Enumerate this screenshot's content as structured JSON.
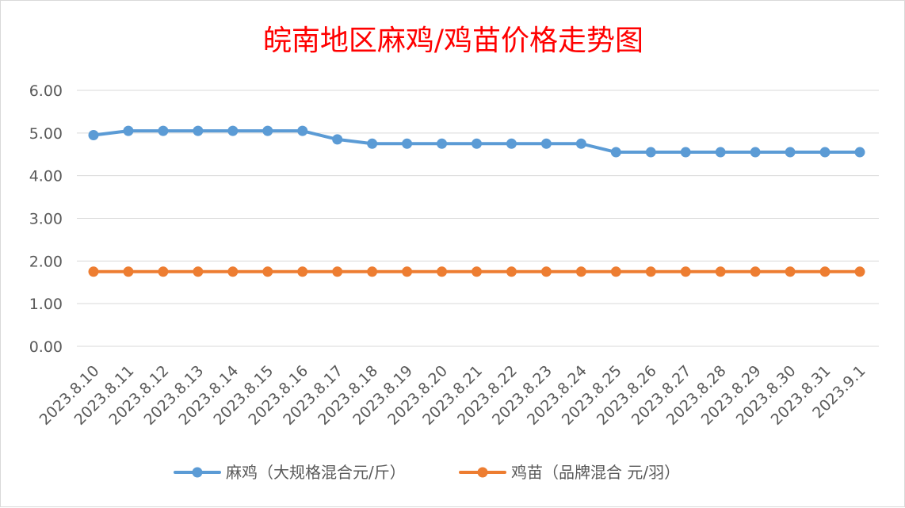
{
  "chart_data": {
    "type": "line",
    "title": "皖南地区麻鸡/鸡苗价格走势图",
    "categories": [
      "2023.8.10",
      "2023.8.11",
      "2023.8.12",
      "2023.8.13",
      "2023.8.14",
      "2023.8.15",
      "2023.8.16",
      "2023.8.17",
      "2023.8.18",
      "2023.8.19",
      "2023.8.20",
      "2023.8.21",
      "2023.8.22",
      "2023.8.23",
      "2023.8.24",
      "2023.8.25",
      "2023.8.26",
      "2023.8.27",
      "2023.8.28",
      "2023.8.29",
      "2023.8.30",
      "2023.8.31",
      "2023.9.1"
    ],
    "y_ticks": [
      "0.00",
      "1.00",
      "2.00",
      "3.00",
      "4.00",
      "5.00",
      "6.00"
    ],
    "ylim": [
      0,
      6
    ],
    "grid": true,
    "legend_position": "bottom",
    "series": [
      {
        "name": "麻鸡（大规格混合元/斤）",
        "color": "#5b9bd5",
        "values": [
          4.95,
          5.05,
          5.05,
          5.05,
          5.05,
          5.05,
          5.05,
          4.85,
          4.75,
          4.75,
          4.75,
          4.75,
          4.75,
          4.75,
          4.75,
          4.55,
          4.55,
          4.55,
          4.55,
          4.55,
          4.55,
          4.55,
          4.55
        ]
      },
      {
        "name": "鸡苗（品牌混合 元/羽）",
        "color": "#ed7d31",
        "values": [
          1.75,
          1.75,
          1.75,
          1.75,
          1.75,
          1.75,
          1.75,
          1.75,
          1.75,
          1.75,
          1.75,
          1.75,
          1.75,
          1.75,
          1.75,
          1.75,
          1.75,
          1.75,
          1.75,
          1.75,
          1.75,
          1.75,
          1.75
        ]
      }
    ]
  }
}
